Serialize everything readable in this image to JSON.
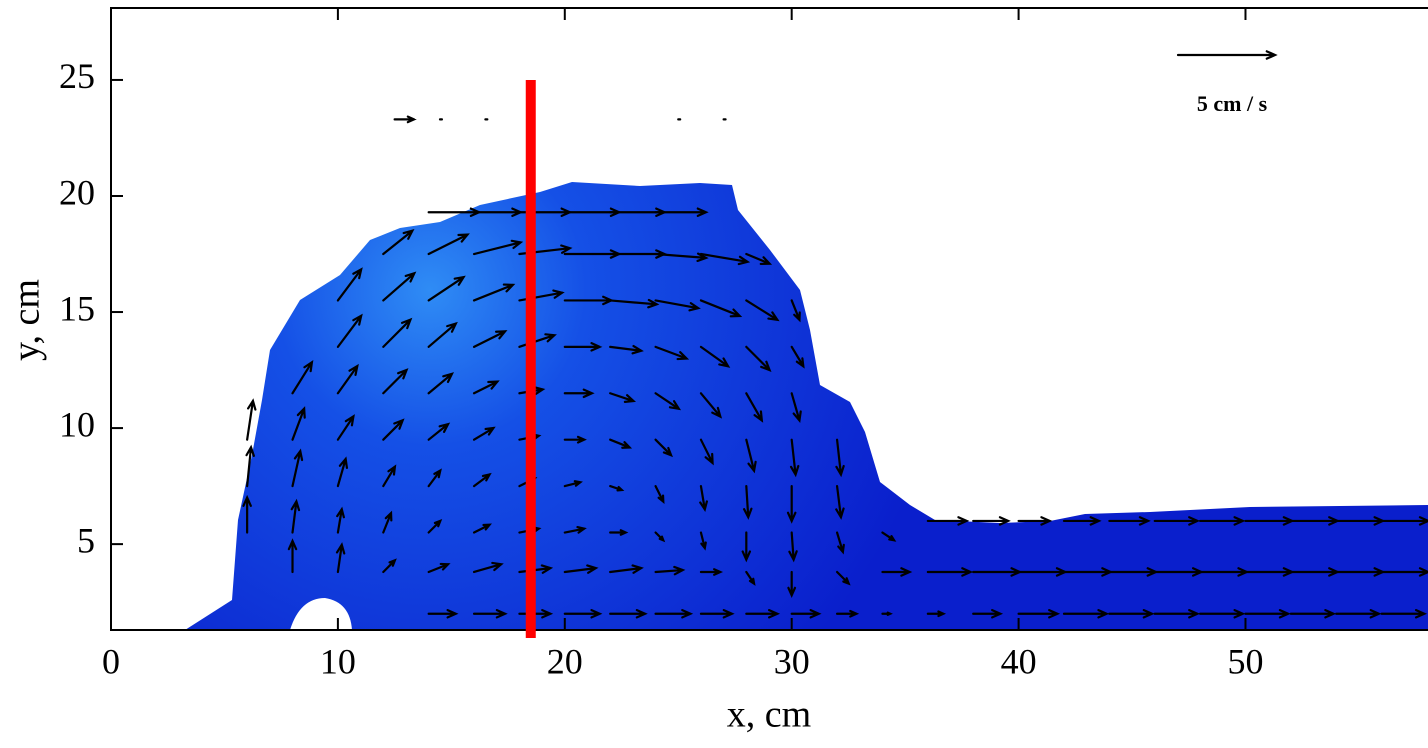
{
  "chart_data": {
    "type": "quiver",
    "xlabel": "x, cm",
    "ylabel": "y, cm",
    "xlim": [
      0,
      58
    ],
    "ylim": [
      1.3,
      28.1
    ],
    "xticks": [
      0,
      10,
      20,
      30,
      40,
      50
    ],
    "yticks": [
      5,
      10,
      15,
      20,
      25
    ],
    "color": "#000000",
    "reference_vector": {
      "value": 5,
      "label": "5 cm / s"
    },
    "vline": {
      "x": 18.5,
      "y": [
        1.3,
        25
      ],
      "color": "#ff0000"
    },
    "x": [
      12.5,
      14.5,
      16.5,
      25,
      27,
      14,
      16,
      18,
      20,
      22,
      24,
      12,
      14,
      16,
      18,
      20,
      22,
      24,
      26,
      28,
      10,
      12,
      14,
      16,
      18,
      20,
      22,
      24,
      26,
      28,
      30,
      10,
      12,
      14,
      16,
      18,
      20,
      22,
      24,
      26,
      28,
      30,
      8,
      10,
      12,
      14,
      16,
      18,
      20,
      22,
      24,
      26,
      28,
      30,
      6,
      8,
      10,
      12,
      14,
      16,
      18,
      20,
      22,
      24,
      26,
      28,
      30,
      32,
      6,
      8,
      10,
      12,
      14,
      16,
      18,
      20,
      22,
      24,
      26,
      28,
      30,
      32,
      6,
      8,
      10,
      12,
      14,
      16,
      18,
      20,
      22,
      24,
      26,
      28,
      30,
      32,
      34,
      36,
      38,
      40,
      42,
      44,
      46,
      48,
      50,
      52,
      54,
      56,
      8,
      10,
      12,
      14,
      16,
      18,
      20,
      22,
      24,
      26,
      28,
      30,
      32,
      34,
      36,
      38,
      40,
      42,
      44,
      46,
      48,
      50,
      52,
      54,
      56,
      14,
      16,
      18,
      20,
      22,
      24,
      26,
      28,
      30,
      32,
      34,
      36,
      38,
      40,
      42,
      44,
      46,
      48,
      50,
      52,
      54,
      56
    ],
    "y": [
      23.3,
      23.3,
      23.3,
      23.3,
      23.3,
      19.3,
      19.3,
      19.3,
      19.3,
      19.3,
      19.3,
      17.5,
      17.5,
      17.5,
      17.5,
      17.5,
      17.5,
      17.5,
      17.5,
      17.5,
      15.5,
      15.5,
      15.5,
      15.5,
      15.5,
      15.5,
      15.5,
      15.5,
      15.5,
      15.5,
      15.5,
      13.5,
      13.5,
      13.5,
      13.5,
      13.5,
      13.5,
      13.5,
      13.5,
      13.5,
      13.5,
      13.5,
      11.5,
      11.5,
      11.5,
      11.5,
      11.5,
      11.5,
      11.5,
      11.5,
      11.5,
      11.5,
      11.5,
      11.5,
      9.5,
      9.5,
      9.5,
      9.5,
      9.5,
      9.5,
      9.5,
      9.5,
      9.5,
      9.5,
      9.5,
      9.5,
      9.5,
      9.5,
      7.5,
      7.5,
      7.5,
      7.5,
      7.5,
      7.5,
      7.5,
      7.5,
      7.5,
      7.5,
      7.5,
      7.5,
      7.5,
      7.5,
      5.5,
      5.5,
      5.5,
      5.5,
      5.5,
      5.5,
      5.5,
      5.5,
      5.5,
      5.5,
      5.5,
      5.5,
      5.5,
      5.5,
      5.5,
      6,
      6,
      6,
      6,
      6,
      6,
      6,
      6,
      6,
      6,
      6,
      3.8,
      3.8,
      3.8,
      3.8,
      3.8,
      3.8,
      3.8,
      3.8,
      3.8,
      3.8,
      3.8,
      3.8,
      3.8,
      3.8,
      3.8,
      3.8,
      3.8,
      3.8,
      3.8,
      3.8,
      3.8,
      3.8,
      3.8,
      3.8,
      3.8,
      2,
      2,
      2,
      2,
      2,
      2,
      2,
      2,
      2,
      2,
      2,
      2,
      2,
      2,
      2,
      2,
      2,
      2,
      2,
      2,
      2,
      2
    ],
    "u": [
      1,
      0.1,
      0.1,
      0.1,
      0.1,
      2.6,
      2.4,
      2.6,
      2.8,
      2.8,
      2.6,
      1.5,
      2,
      2.4,
      2.6,
      2.8,
      2.8,
      2.6,
      2.4,
      1.2,
      1.2,
      1.6,
      1.8,
      2,
      2.2,
      2.4,
      2.4,
      2.2,
      2,
      1.6,
      0.4,
      1.2,
      1.4,
      1.4,
      1.6,
      1.8,
      1.8,
      1.6,
      1.6,
      1.4,
      1.2,
      0.6,
      1,
      1,
      1.2,
      1.2,
      1.2,
      1.2,
      1.4,
      1.2,
      1.2,
      1,
      0.8,
      0.4,
      0.3,
      0.6,
      0.8,
      1,
      1,
      1,
      1,
      1,
      1,
      0.8,
      0.6,
      0.4,
      0.2,
      0.2,
      0.2,
      0.4,
      0.4,
      0.6,
      0.6,
      0.8,
      0.8,
      0.8,
      0.6,
      0.4,
      0.2,
      0.1,
      0,
      0.2,
      0,
      0.2,
      0.2,
      0.4,
      0.6,
      0.8,
      1,
      1,
      0.8,
      0.4,
      0.2,
      0,
      0.1,
      0.3,
      0.6,
      2,
      1.8,
      1.6,
      1.8,
      2,
      2.2,
      2.2,
      2.4,
      2.4,
      2.4,
      2.4,
      0,
      0.2,
      0.6,
      1,
      1.4,
      1.6,
      1.6,
      1.6,
      1.4,
      1,
      0.4,
      0,
      0.6,
      1.4,
      2.2,
      2.4,
      2.4,
      2.4,
      2.4,
      2.4,
      2.4,
      2.4,
      2.4,
      2.4,
      2.4,
      1.4,
      1.6,
      1.6,
      1.8,
      1.8,
      1.8,
      1.6,
      1.6,
      1.4,
      1,
      0.4,
      0.8,
      1.4,
      2,
      2.2,
      2.2,
      2.2,
      2.2,
      2.2,
      2.2,
      2.2,
      2.2
    ],
    "v": [
      0,
      0,
      0,
      0,
      0,
      0,
      0,
      0,
      0,
      0,
      0,
      1.2,
      1,
      0.6,
      0.3,
      0,
      0,
      -0.2,
      -0.4,
      -0.5,
      1.6,
      1.4,
      1.2,
      0.8,
      0.4,
      0,
      -0.2,
      -0.4,
      -0.8,
      -1,
      -1,
      1.6,
      1.4,
      1.2,
      0.8,
      0.6,
      0,
      -0.2,
      -0.6,
      -1,
      -1.2,
      -1,
      1.6,
      1.4,
      1.2,
      1,
      0.6,
      0.2,
      0,
      -0.4,
      -0.8,
      -1.2,
      -1.4,
      -1.4,
      2,
      1.6,
      1.2,
      1,
      0.8,
      0.6,
      0.2,
      0,
      -0.4,
      -0.8,
      -1.2,
      -1.6,
      -1.8,
      -1.8,
      2,
      1.8,
      1.4,
      1,
      0.8,
      0.6,
      0.4,
      0.2,
      -0.2,
      -0.8,
      -1.2,
      -1.6,
      -1.8,
      -1.6,
      1.8,
      1.6,
      1.2,
      1,
      0.6,
      0.4,
      0.2,
      0.2,
      0,
      -0.4,
      -0.8,
      -1.4,
      -1.4,
      -1,
      -0.4,
      0,
      0,
      0,
      0,
      0,
      0,
      0,
      0,
      0,
      0,
      0,
      1.6,
      1.4,
      0.6,
      0.4,
      0.4,
      0.2,
      0.2,
      0.2,
      0.1,
      0,
      -0.6,
      -1.2,
      -0.6,
      0,
      0,
      0,
      0,
      0,
      0,
      0,
      0,
      0,
      0,
      0,
      0,
      0,
      0,
      0,
      0,
      0,
      0,
      0,
      0,
      0,
      0,
      0,
      0,
      0,
      0,
      0,
      0,
      0,
      0,
      0,
      0,
      0,
      0
    ]
  }
}
